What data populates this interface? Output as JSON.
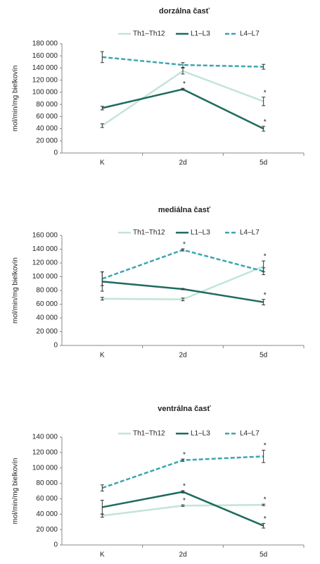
{
  "chart_data": [
    {
      "type": "line",
      "title": "dorzálna časť",
      "y_label": "mol/min/mg bielkovín",
      "categories": [
        "K",
        "2d",
        "5d"
      ],
      "ylim": [
        0,
        180000
      ],
      "yticks": [
        0,
        {
          "value": 20000,
          "label": "20 000"
        },
        {
          "value": 40000,
          "label": "40 000"
        },
        {
          "value": 60000,
          "label": "60 000"
        },
        {
          "value": 80000,
          "label": "80 000"
        },
        {
          "value": 100000,
          "label": "100 000"
        },
        {
          "value": 120000,
          "label": "120 000"
        },
        {
          "value": 140000,
          "label": "140 000"
        },
        {
          "value": 160000,
          "label": "160 000"
        },
        {
          "value": 180000,
          "label": "180 000"
        }
      ],
      "series": [
        {
          "name": "Th1–Th12",
          "color": "#c3e4d7",
          "dashed": false,
          "values": [
            45000,
            135000,
            85000
          ],
          "errors": [
            3000,
            5000,
            7000
          ],
          "labels": [
            null,
            null,
            "*"
          ]
        },
        {
          "name": "L1–L3",
          "color": "#1d6b5e",
          "dashed": false,
          "values": [
            74000,
            105000,
            40000
          ],
          "errors": [
            3000,
            1500,
            4000
          ],
          "labels": [
            null,
            "*",
            "*"
          ]
        },
        {
          "name": "L4–L7",
          "color": "#3aa6b0",
          "dashed": true,
          "values": [
            158000,
            145000,
            142000
          ],
          "errors": [
            9000,
            4000,
            4000
          ],
          "labels": [
            null,
            null,
            null
          ]
        }
      ]
    },
    {
      "type": "line",
      "title": "mediálna časť",
      "y_label": "mol/min/mg bielkovín",
      "categories": [
        "K",
        "2d",
        "5d"
      ],
      "ylim": [
        0,
        160000
      ],
      "yticks": [
        0,
        {
          "value": 20000,
          "label": "20 000"
        },
        {
          "value": 40000,
          "label": "40 000"
        },
        {
          "value": 60000,
          "label": "60 000"
        },
        {
          "value": 80000,
          "label": "80 000"
        },
        {
          "value": 100000,
          "label": "100 000"
        },
        {
          "value": 120000,
          "label": "120 000"
        },
        {
          "value": 140000,
          "label": "140 000"
        },
        {
          "value": 160000,
          "label": "160 000"
        }
      ],
      "series": [
        {
          "name": "Th1–Th12",
          "color": "#c3e4d7",
          "dashed": false,
          "values": [
            68000,
            67000,
            115000
          ],
          "errors": [
            2000,
            2000,
            8000
          ],
          "labels": [
            null,
            null,
            "*"
          ]
        },
        {
          "name": "L1–L3",
          "color": "#1d6b5e",
          "dashed": false,
          "values": [
            93000,
            82000,
            63000
          ],
          "errors": [
            14000,
            1000,
            4000
          ],
          "labels": [
            null,
            null,
            "*"
          ]
        },
        {
          "name": "L4–L7",
          "color": "#3aa6b0",
          "dashed": true,
          "values": [
            97000,
            139000,
            108000
          ],
          "errors": [
            10000,
            1500,
            5000
          ],
          "labels": [
            null,
            "*",
            null
          ]
        }
      ]
    },
    {
      "type": "line",
      "title": "ventrálna časť",
      "y_label": "mol/min/mg bielkovín",
      "categories": [
        "K",
        "2d",
        "5d"
      ],
      "ylim": [
        0,
        140000
      ],
      "yticks": [
        0,
        {
          "value": 20000,
          "label": "20 000"
        },
        {
          "value": 40000,
          "label": "40 000"
        },
        {
          "value": 60000,
          "label": "60 000"
        },
        {
          "value": 80000,
          "label": "80 000"
        },
        {
          "value": 100000,
          "label": "100 000"
        },
        {
          "value": 120000,
          "label": "120 000"
        },
        {
          "value": 140000,
          "label": "140 000"
        }
      ],
      "series": [
        {
          "name": "Th1–Th12",
          "color": "#c3e4d7",
          "dashed": false,
          "values": [
            38000,
            51000,
            52000
          ],
          "errors": [
            2000,
            1000,
            1000
          ],
          "labels": [
            null,
            "*",
            "*"
          ]
        },
        {
          "name": "L1–L3",
          "color": "#1d6b5e",
          "dashed": false,
          "values": [
            49000,
            69000,
            25000
          ],
          "errors": [
            9000,
            1500,
            3000
          ],
          "labels": [
            null,
            "*",
            "*"
          ]
        },
        {
          "name": "L4–L7",
          "color": "#3aa6b0",
          "dashed": true,
          "values": [
            74000,
            110000,
            115000
          ],
          "errors": [
            4000,
            1500,
            8000
          ],
          "labels": [
            null,
            "*",
            "*"
          ]
        }
      ]
    }
  ]
}
